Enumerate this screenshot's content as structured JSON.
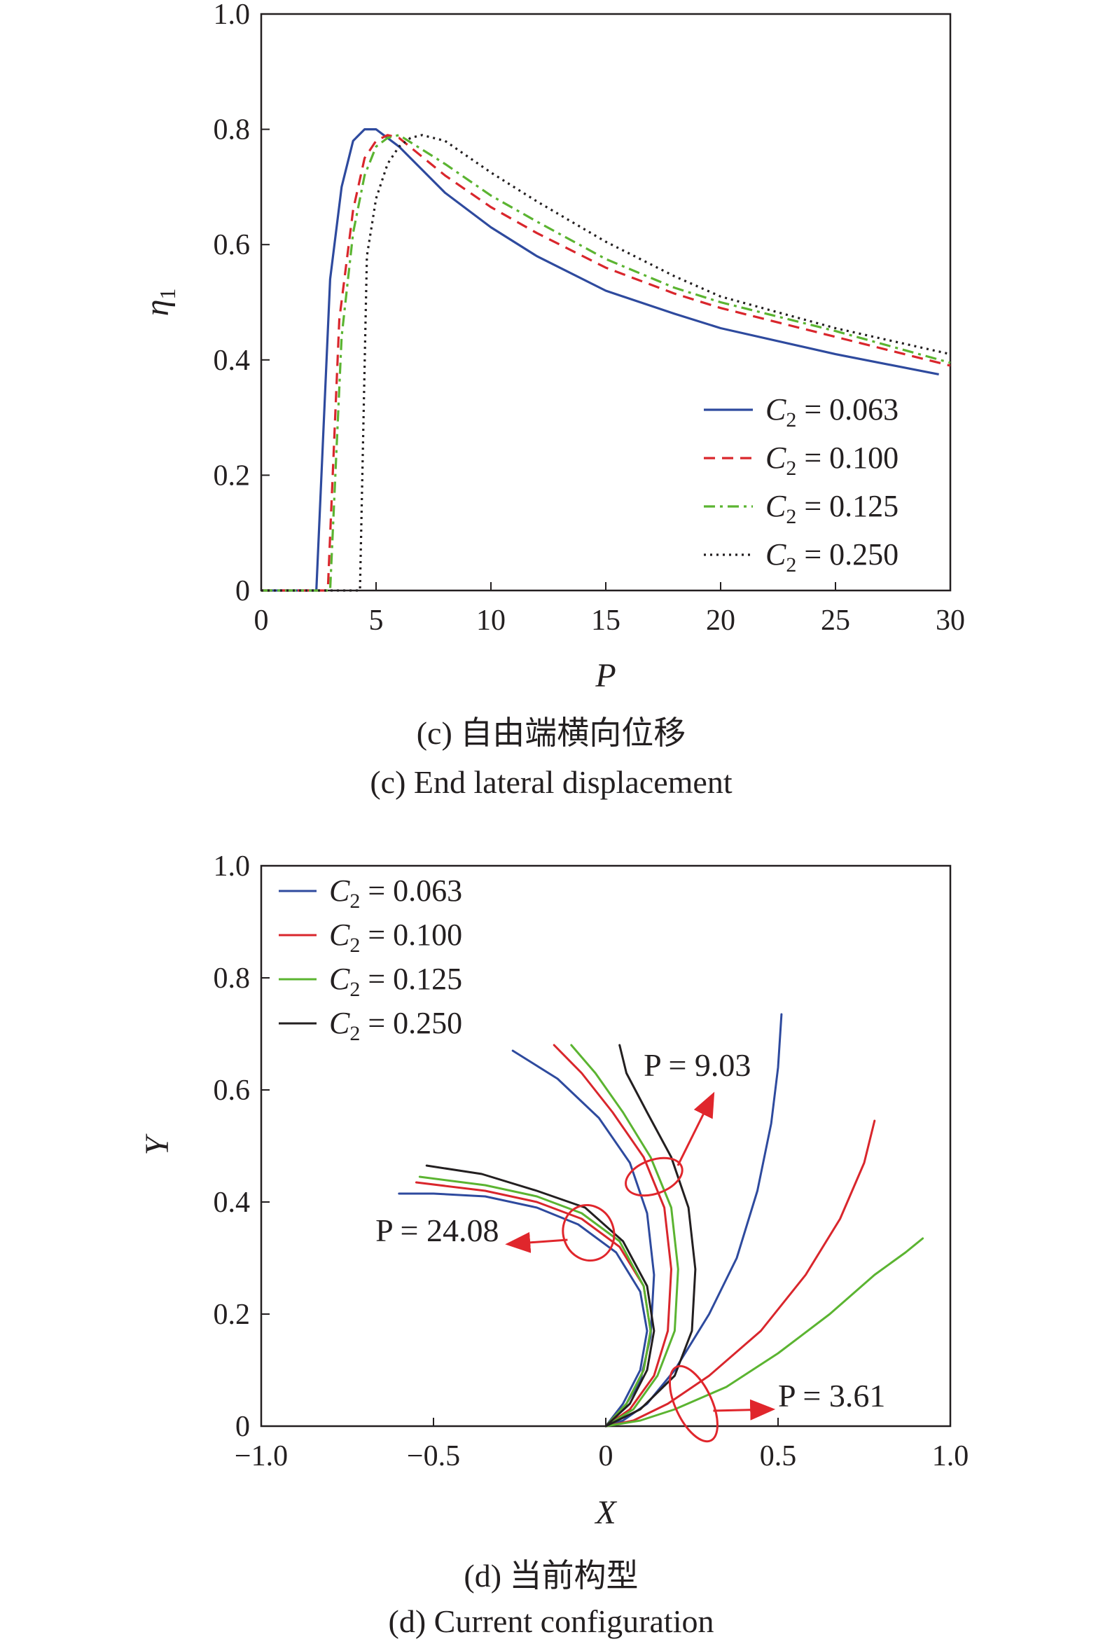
{
  "chart_data": [
    {
      "type": "line",
      "xlabel": "P",
      "ylabel": "η1",
      "xlim": [
        0,
        30
      ],
      "ylim": [
        0,
        1.0
      ],
      "xticks": [
        "0",
        "5",
        "10",
        "15",
        "20",
        "25",
        "30"
      ],
      "yticks": [
        "0",
        "0.2",
        "0.4",
        "0.6",
        "0.8",
        "1.0"
      ],
      "legend_position": "bottom-right",
      "caption_cn": "(c) 自由端横向位移",
      "caption_en": "(c) End lateral displacement",
      "series": [
        {
          "name": "C2 = 0.063",
          "color": "#2e4a9e",
          "dash": "solid",
          "x": [
            0,
            2.4,
            3.0,
            3.5,
            4.0,
            4.5,
            5.0,
            6,
            8,
            10,
            12,
            15,
            18,
            20,
            25,
            29.5
          ],
          "y": [
            0,
            0,
            0.54,
            0.7,
            0.78,
            0.8,
            0.8,
            0.77,
            0.69,
            0.63,
            0.58,
            0.52,
            0.48,
            0.455,
            0.41,
            0.375
          ]
        },
        {
          "name": "C2 = 0.100",
          "color": "#d9262c",
          "dash": "dash",
          "x": [
            0,
            2.9,
            3.4,
            4.0,
            4.5,
            5.0,
            5.5,
            6,
            8,
            10,
            12,
            15,
            18,
            20,
            25,
            30
          ],
          "y": [
            0,
            0,
            0.47,
            0.66,
            0.75,
            0.78,
            0.79,
            0.785,
            0.72,
            0.665,
            0.62,
            0.56,
            0.515,
            0.49,
            0.44,
            0.39
          ]
        },
        {
          "name": "C2 = 0.125",
          "color": "#5bb431",
          "dash": "dashdot",
          "x": [
            0,
            3.0,
            3.5,
            4.0,
            4.5,
            5.0,
            5.5,
            6.0,
            8,
            10,
            12,
            15,
            18,
            20,
            25,
            30
          ],
          "y": [
            0,
            0,
            0.44,
            0.62,
            0.72,
            0.77,
            0.785,
            0.79,
            0.74,
            0.685,
            0.64,
            0.575,
            0.525,
            0.5,
            0.45,
            0.395
          ]
        },
        {
          "name": "C2 = 0.250",
          "color": "#231f20",
          "dash": "dot",
          "x": [
            0,
            4.3,
            4.6,
            5.0,
            5.5,
            6.0,
            6.5,
            7.0,
            8,
            10,
            12,
            15,
            18,
            20,
            25,
            30
          ],
          "y": [
            0,
            0,
            0.58,
            0.68,
            0.74,
            0.77,
            0.785,
            0.79,
            0.78,
            0.725,
            0.675,
            0.605,
            0.545,
            0.51,
            0.455,
            0.41
          ]
        }
      ]
    },
    {
      "type": "line",
      "xlabel": "X",
      "ylabel": "Y",
      "xlim": [
        -1.0,
        1.0
      ],
      "ylim": [
        0,
        1.0
      ],
      "xticks": [
        "−1.0",
        "−0.5",
        "0",
        "0.5",
        "1.0"
      ],
      "yticks": [
        "0",
        "0.2",
        "0.4",
        "0.6",
        "0.8",
        "1.0"
      ],
      "legend_position": "top-left",
      "caption_cn": "(d) 当前构型",
      "caption_en": "(d) Current configuration",
      "annotations": [
        "P = 9.03",
        "P = 24.08",
        "P = 3.61"
      ],
      "annotation_color": "#e0262c",
      "series": [
        {
          "name": "C2 = 0.063",
          "color": "#2e4a9e",
          "curves": [
            {
              "P": "3.61",
              "x": [
                0,
                0.05,
                0.12,
                0.2,
                0.3,
                0.38,
                0.44,
                0.48,
                0.5,
                0.51
              ],
              "y": [
                0,
                0.01,
                0.04,
                0.1,
                0.2,
                0.3,
                0.42,
                0.54,
                0.64,
                0.735
              ]
            },
            {
              "P": "9.03",
              "x": [
                0,
                0.05,
                0.1,
                0.13,
                0.14,
                0.12,
                0.07,
                -0.02,
                -0.14,
                -0.27
              ],
              "y": [
                0,
                0.03,
                0.08,
                0.16,
                0.27,
                0.38,
                0.47,
                0.55,
                0.62,
                0.67
              ]
            },
            {
              "P": "24.08",
              "x": [
                0,
                0.05,
                0.1,
                0.12,
                0.1,
                0.03,
                -0.08,
                -0.2,
                -0.35,
                -0.5,
                -0.6
              ],
              "y": [
                0,
                0.04,
                0.1,
                0.17,
                0.24,
                0.31,
                0.36,
                0.39,
                0.41,
                0.415,
                0.415
              ]
            }
          ]
        },
        {
          "name": "C2 = 0.100",
          "color": "#d9262c",
          "curves": [
            {
              "P": "3.61",
              "x": [
                0,
                0.08,
                0.18,
                0.3,
                0.45,
                0.58,
                0.68,
                0.75,
                0.78
              ],
              "y": [
                0,
                0.01,
                0.04,
                0.09,
                0.17,
                0.27,
                0.37,
                0.47,
                0.545
              ]
            },
            {
              "P": "9.03",
              "x": [
                0,
                0.07,
                0.14,
                0.18,
                0.19,
                0.17,
                0.11,
                0.02,
                -0.07,
                -0.15
              ],
              "y": [
                0,
                0.03,
                0.09,
                0.17,
                0.28,
                0.39,
                0.48,
                0.56,
                0.63,
                0.68
              ]
            },
            {
              "P": "24.08",
              "x": [
                0,
                0.06,
                0.11,
                0.13,
                0.11,
                0.04,
                -0.07,
                -0.2,
                -0.35,
                -0.55
              ],
              "y": [
                0,
                0.04,
                0.1,
                0.17,
                0.25,
                0.32,
                0.37,
                0.4,
                0.42,
                0.435
              ]
            }
          ]
        },
        {
          "name": "C2 = 0.125",
          "color": "#5bb431",
          "curves": [
            {
              "P": "3.61",
              "x": [
                0,
                0.1,
                0.2,
                0.35,
                0.5,
                0.65,
                0.78,
                0.87,
                0.92
              ],
              "y": [
                0,
                0.01,
                0.03,
                0.07,
                0.13,
                0.2,
                0.27,
                0.31,
                0.335
              ]
            },
            {
              "P": "9.03",
              "x": [
                0,
                0.08,
                0.15,
                0.2,
                0.21,
                0.19,
                0.13,
                0.05,
                -0.03,
                -0.1
              ],
              "y": [
                0,
                0.03,
                0.09,
                0.17,
                0.28,
                0.39,
                0.48,
                0.56,
                0.63,
                0.68
              ]
            },
            {
              "P": "24.08",
              "x": [
                0,
                0.06,
                0.11,
                0.13,
                0.11,
                0.04,
                -0.07,
                -0.2,
                -0.35,
                -0.54
              ],
              "y": [
                0,
                0.04,
                0.1,
                0.17,
                0.25,
                0.33,
                0.38,
                0.41,
                0.43,
                0.445
              ]
            }
          ]
        },
        {
          "name": "C2 = 0.250",
          "color": "#231f20",
          "curves": [
            {
              "P": "9.03",
              "x": [
                0,
                0.1,
                0.2,
                0.25,
                0.26,
                0.24,
                0.19,
                0.12,
                0.06,
                0.04
              ],
              "y": [
                0,
                0.03,
                0.09,
                0.17,
                0.28,
                0.39,
                0.48,
                0.56,
                0.63,
                0.68
              ]
            },
            {
              "P": "24.08",
              "x": [
                0,
                0.07,
                0.12,
                0.14,
                0.12,
                0.05,
                -0.06,
                -0.2,
                -0.36,
                -0.52
              ],
              "y": [
                0,
                0.04,
                0.1,
                0.17,
                0.25,
                0.33,
                0.39,
                0.42,
                0.45,
                0.465
              ]
            }
          ]
        }
      ]
    }
  ]
}
